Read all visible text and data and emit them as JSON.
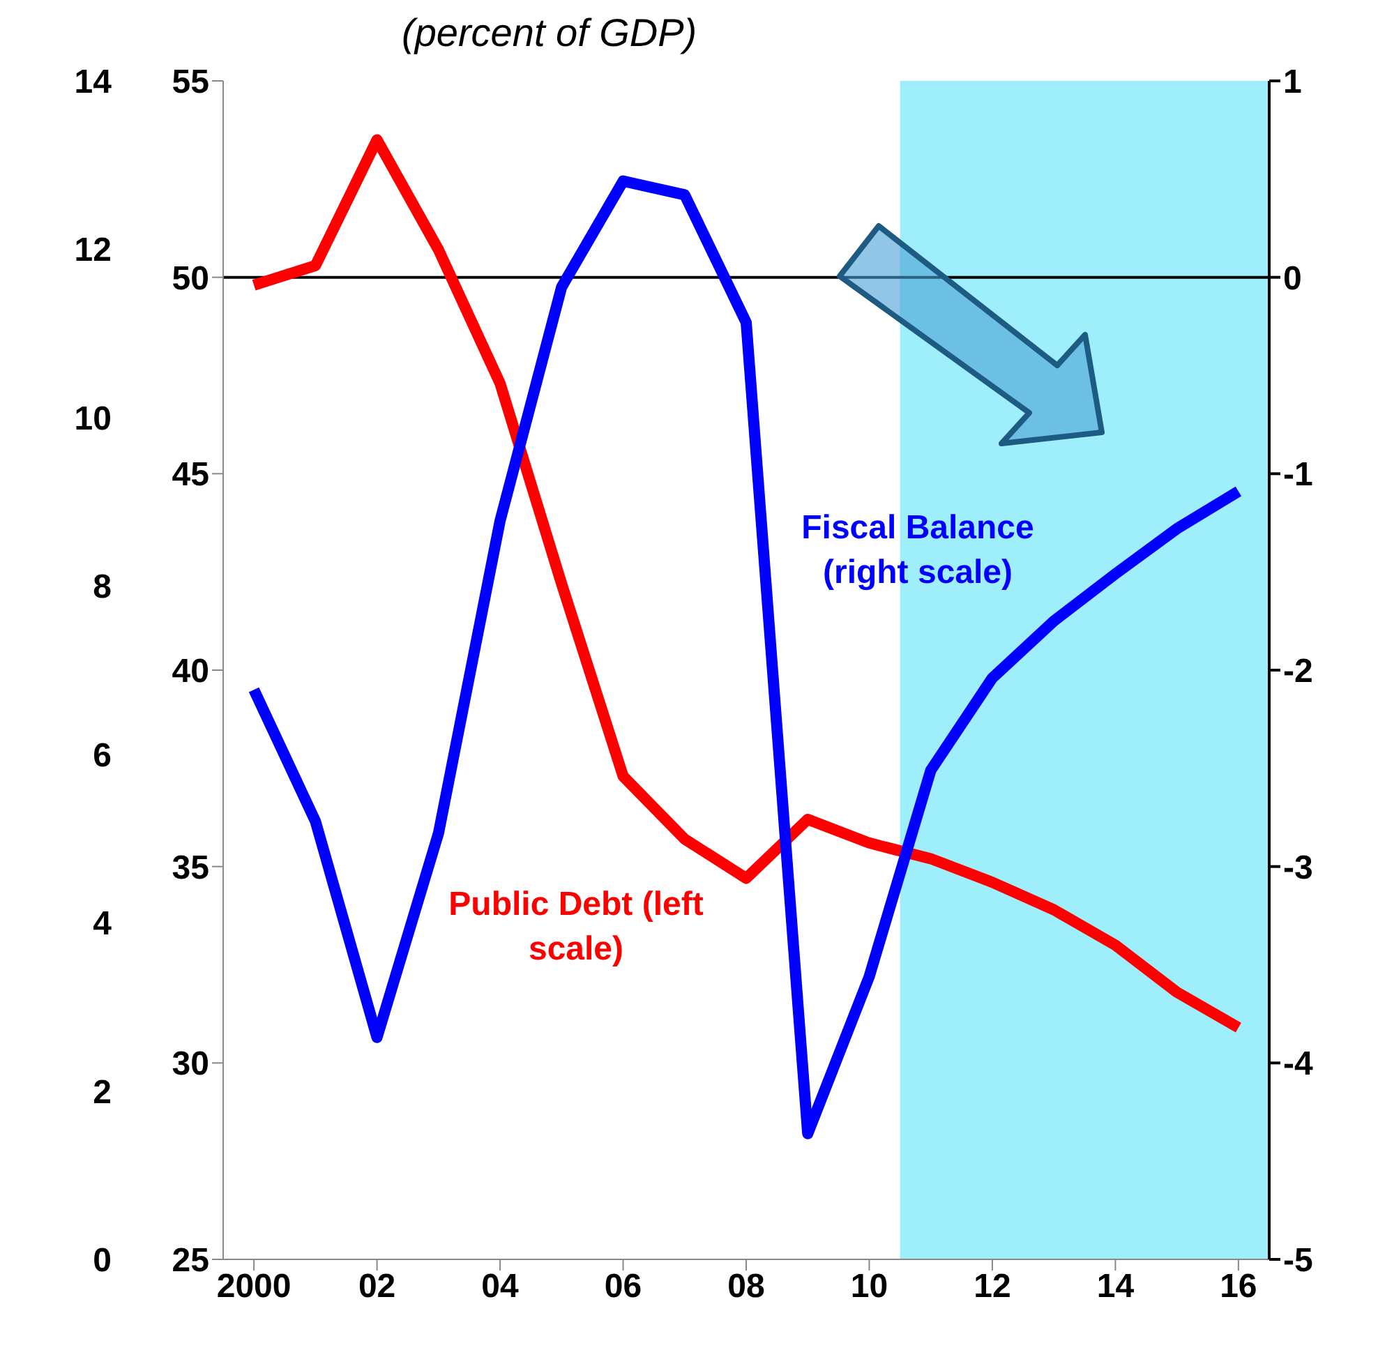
{
  "chart_data": {
    "type": "line",
    "title": "(percent of GDP)",
    "x": [
      2000,
      2001,
      2002,
      2003,
      2004,
      2005,
      2006,
      2007,
      2008,
      2009,
      2010,
      2011,
      2012,
      2013,
      2014,
      2015,
      2016
    ],
    "series": [
      {
        "name": "Public Debt (left scale)",
        "color": "#ff0000",
        "values": [
          49.8,
          50.3,
          53.5,
          50.7,
          47.3,
          42.2,
          37.3,
          35.7,
          34.7,
          36.2,
          35.6,
          35.2,
          34.6,
          33.9,
          33.0,
          31.8,
          30.9
        ]
      },
      {
        "name": "Fiscal Balance (right scale)",
        "color": "#0000ff",
        "axis": "y2",
        "values": [
          -2.1,
          -2.77,
          -3.87,
          -2.83,
          -1.24,
          -0.05,
          0.49,
          0.42,
          -0.23,
          -4.36,
          -3.56,
          -2.51,
          -2.04,
          -1.75,
          -1.51,
          -1.28,
          -1.09
        ]
      }
    ],
    "xlim": [
      1999.5,
      2016.5
    ],
    "xticks": [
      {
        "value": 2000,
        "label": "2000"
      },
      {
        "value": 2002,
        "label": "02"
      },
      {
        "value": 2004,
        "label": "04"
      },
      {
        "value": 2006,
        "label": "06"
      },
      {
        "value": 2008,
        "label": "08"
      },
      {
        "value": 2010,
        "label": "10"
      },
      {
        "value": 2012,
        "label": "12"
      },
      {
        "value": 2014,
        "label": "14"
      },
      {
        "value": 2016,
        "label": "16"
      }
    ],
    "ylim": [
      25,
      55
    ],
    "yticks": [
      25,
      30,
      35,
      40,
      45,
      50,
      55
    ],
    "y2lim": [
      -5,
      1
    ],
    "y2ticks": [
      -5,
      -4,
      -3,
      -2,
      -1,
      0,
      1
    ],
    "y3lim": [
      0,
      14
    ],
    "y3ticks": [
      0,
      2,
      4,
      6,
      8,
      10,
      12,
      14
    ],
    "ref_lines": [
      {
        "axis": "y2",
        "value": 0,
        "color": "#000000"
      }
    ],
    "bands": [
      {
        "axis": "x",
        "from": 2010.5,
        "to": 2016.5,
        "color": "#9eeffb"
      }
    ],
    "grid": false,
    "legend": false,
    "marker": "none",
    "line_style": "solid"
  }
}
